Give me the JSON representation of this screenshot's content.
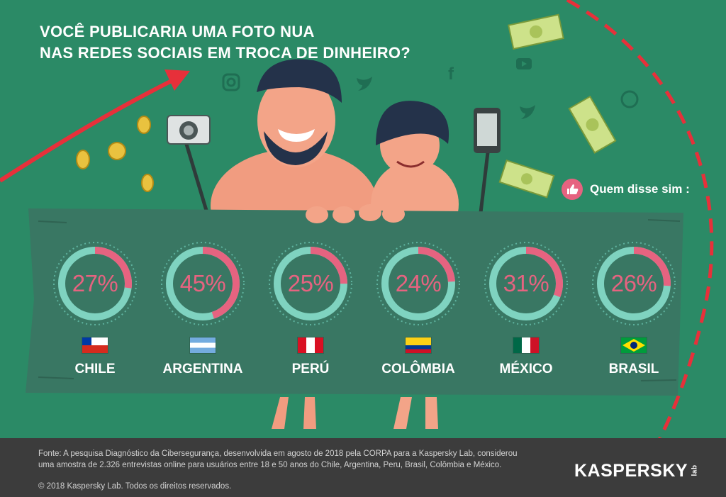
{
  "title": {
    "line1": "VOCÊ PUBLICARIA UMA FOTO NUA",
    "line2": "NAS REDES SOCIAIS EM TROCA DE DINHEIRO?"
  },
  "legend_label": "Quem disse sim :",
  "stats": [
    {
      "country": "CHILE",
      "percent_label": "27%",
      "value": 27,
      "flag": "chile-flag"
    },
    {
      "country": "ARGENTINA",
      "percent_label": "45%",
      "value": 45,
      "flag": "argentina-flag"
    },
    {
      "country": "PERÚ",
      "percent_label": "25%",
      "value": 25,
      "flag": "peru-flag"
    },
    {
      "country": "COLÔMBIA",
      "percent_label": "24%",
      "value": 24,
      "flag": "colombia-flag"
    },
    {
      "country": "MÉXICO",
      "percent_label": "31%",
      "value": 31,
      "flag": "mexico-flag"
    },
    {
      "country": "BRASIL",
      "percent_label": "26%",
      "value": 26,
      "flag": "brazil-flag"
    }
  ],
  "footer": {
    "source_line1": "Fonte: A pesquisa Diagnóstico da Cibersegurança, desenvolvida em agosto de 2018 pela CORPA para a Kaspersky Lab, considerou",
    "source_line2": "uma amostra de 2.326 entrevistas online para usuários entre 18 e 50 anos do Chile, Argentina, Peru, Brasil, Colômbia e México.",
    "copyright": "© 2018 Kaspersky Lab. Todos os direitos reservados.",
    "logo_text": "KASPERSKY",
    "logo_suffix": "lab"
  },
  "colors": {
    "background": "#2b8a66",
    "banner": "#397763",
    "ring_track": "#7fd3c0",
    "ring_fill": "#e66380",
    "accent_red": "#e7303a",
    "footer": "#3c3c3c"
  },
  "icons": [
    "instagram-icon",
    "twitter-icon",
    "facebook-icon",
    "youtube-icon",
    "whatsapp-icon",
    "thumbs-up-icon",
    "camera-icon",
    "smartphone-icon",
    "coin-icon",
    "banknote-icon"
  ]
}
